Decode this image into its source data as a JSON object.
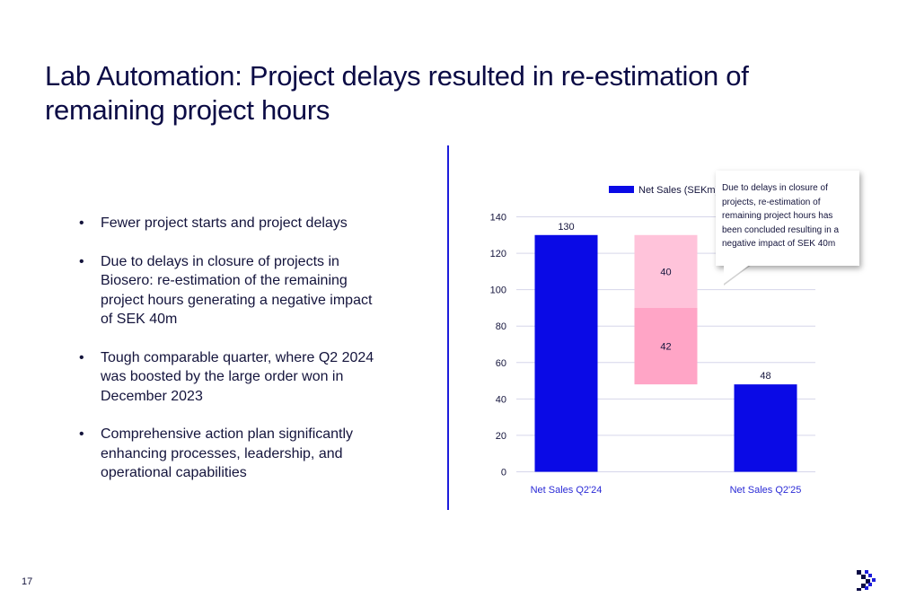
{
  "title": "Lab Automation: Project delays resulted in re-estimation of remaining project hours",
  "bullets": [
    "Fewer project starts and project delays",
    "Due to delays in closure of projects in Biosero: re-estimation of the remaining project hours generating a negative impact of SEK 40m",
    "Tough comparable quarter, where Q2 2024 was boosted by the large order won in December 2023",
    "Comprehensive action plan significantly enhancing processes, leadership, and operational capabilities"
  ],
  "bullet_glyph": "•",
  "callout_text": "Due to delays in closure of projects, re-estimation of remaining project hours has been concluded resulting in a negative impact of SEK 40m",
  "page_number": "17",
  "logo_icon": "double-chevron-right-icon",
  "colors": {
    "navy": "#0b0b45",
    "blue": "#0a0ae6",
    "pink_light": "#ffc3da",
    "pink": "#ffa5c6",
    "divider": "#1d1ddb",
    "axis_label": "#2a2ad6"
  },
  "chart_data": {
    "type": "bar",
    "subtype": "waterfall",
    "legend": "Net Sales (SEKm)",
    "legend_position": "top-right",
    "grid": true,
    "ylim": [
      0,
      140
    ],
    "yticks": [
      0,
      20,
      40,
      60,
      80,
      100,
      120,
      140
    ],
    "categories": [
      "Net Sales Q2'24",
      "",
      "Net Sales Q2'25"
    ],
    "bars": [
      {
        "category": "Net Sales Q2'24",
        "base": 0,
        "value": 130,
        "label": "130",
        "color": "#0a0ae6"
      },
      {
        "category": "",
        "base": 90,
        "value": 40,
        "label": "40",
        "color": "#ffc3da"
      },
      {
        "category": "",
        "base": 48,
        "value": 42,
        "label": "42",
        "color": "#ffa5c6"
      },
      {
        "category": "Net Sales Q2'25",
        "base": 0,
        "value": 48,
        "label": "48",
        "color": "#0a0ae6"
      }
    ]
  }
}
